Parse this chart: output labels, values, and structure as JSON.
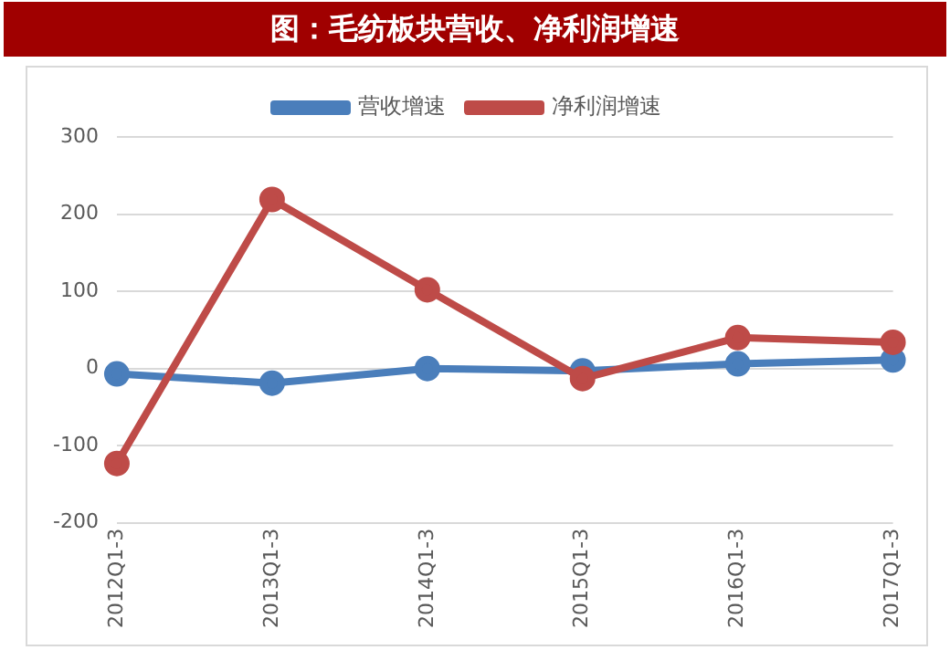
{
  "chart_data": {
    "type": "line",
    "title": "图：毛纺板块营收、净利润增速",
    "categories": [
      "2012Q1-3",
      "2013Q1-3",
      "2014Q1-3",
      "2015Q1-3",
      "2016Q1-3",
      "2017Q1-3"
    ],
    "series": [
      {
        "name": "营收增速",
        "color": "#4a7ebb",
        "values": [
          -7,
          -19,
          0,
          -3,
          6,
          11
        ]
      },
      {
        "name": "净利润增速",
        "color": "#be4b48",
        "values": [
          -123,
          219,
          102,
          -13,
          40,
          34
        ]
      }
    ],
    "ylim": [
      -200,
      300
    ],
    "yticks": [
      -200,
      -100,
      0,
      100,
      200,
      300
    ],
    "grid": "y",
    "legend": "top",
    "marker": "circle",
    "line_style": "solid"
  }
}
